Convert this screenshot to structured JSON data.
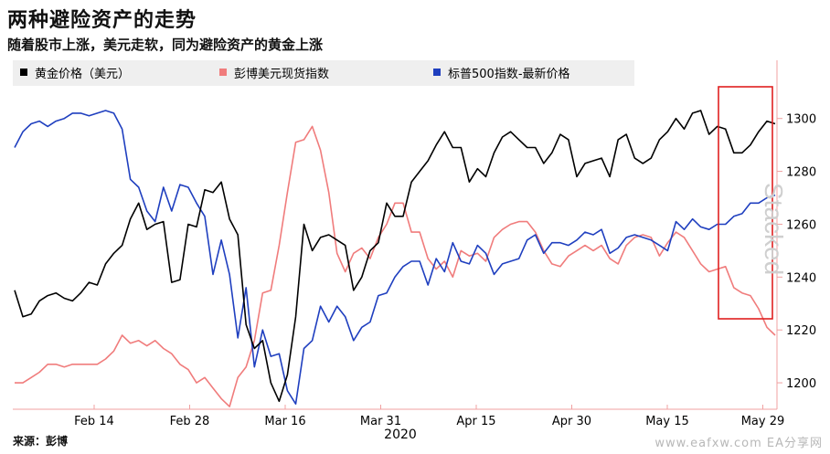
{
  "title": "两种避险资产的走势",
  "subtitle": "随着股市上涨，美元走软，同为避险资产的黄金上涨",
  "source": "来源：彭博",
  "watermark": "www.eafxw.com  EA分享网",
  "brand": "Stacked",
  "colors": {
    "gold": "#000000",
    "dollar": "#f07c7c",
    "sp500": "#1f3fbf",
    "highlight": "#e02020",
    "legend_bg": "#efefef",
    "axis": "#f0a0a0"
  },
  "chart_data": {
    "type": "line",
    "title": "两种避险资产的走势",
    "x_tick_labels": [
      "Feb 14",
      "Feb 28",
      "Mar 16",
      "Mar 31",
      "Apr 15",
      "Apr 30",
      "May 15",
      "May 29"
    ],
    "x_year_label": "2020",
    "y_ticks": [
      1200,
      1220,
      1240,
      1260,
      1280,
      1300
    ],
    "ylim": [
      1190,
      1312
    ],
    "legend_position": "top",
    "grid": false,
    "series": [
      {
        "name": "黄金价格（美元）",
        "key": "gold",
        "values": [
          1235,
          1225,
          1226,
          1231,
          1233,
          1234,
          1232,
          1231,
          1234,
          1238,
          1237,
          1245,
          1249,
          1252,
          1262,
          1268,
          1258,
          1260,
          1261,
          1238,
          1239,
          1260,
          1259,
          1273,
          1272,
          1276,
          1262,
          1256,
          1222,
          1213,
          1216,
          1200,
          1193,
          1203,
          1225,
          1260,
          1250,
          1255,
          1256,
          1254,
          1252,
          1235,
          1240,
          1250,
          1253,
          1268,
          1263,
          1263,
          1276,
          1280,
          1284,
          1290,
          1295,
          1289,
          1289,
          1276,
          1281,
          1278,
          1287,
          1293,
          1295,
          1292,
          1289,
          1289,
          1283,
          1287,
          1294,
          1292,
          1278,
          1283,
          1284,
          1285,
          1278,
          1292,
          1294,
          1285,
          1283,
          1285,
          1292,
          1295,
          1300,
          1296,
          1302,
          1303,
          1294,
          1297,
          1296,
          1287,
          1287,
          1290,
          1295,
          1299,
          1298
        ]
      },
      {
        "name": "彭博美元现货指数",
        "key": "dollar",
        "values": [
          1200,
          1200,
          1202,
          1204,
          1207,
          1207,
          1206,
          1207,
          1207,
          1207,
          1207,
          1209,
          1212,
          1218,
          1215,
          1216,
          1214,
          1216,
          1213,
          1211,
          1207,
          1205,
          1200,
          1202,
          1198,
          1194,
          1191,
          1202,
          1206,
          1216,
          1234,
          1235,
          1252,
          1272,
          1291,
          1292,
          1297,
          1288,
          1272,
          1249,
          1242,
          1249,
          1251,
          1247,
          1255,
          1260,
          1268,
          1268,
          1257,
          1257,
          1247,
          1243,
          1246,
          1240,
          1250,
          1248,
          1249,
          1246,
          1255,
          1258,
          1260,
          1261,
          1261,
          1257,
          1250,
          1245,
          1244,
          1248,
          1250,
          1252,
          1250,
          1252,
          1247,
          1245,
          1252,
          1255,
          1256,
          1255,
          1248,
          1253,
          1257,
          1255,
          1250,
          1245,
          1242,
          1243,
          1244,
          1236,
          1234,
          1233,
          1228,
          1221,
          1218
        ]
      },
      {
        "name": "标普500指数-最新价格",
        "key": "sp500",
        "values": [
          1289,
          1295,
          1298,
          1299,
          1297,
          1299,
          1300,
          1302,
          1302,
          1301,
          1302,
          1303,
          1302,
          1296,
          1277,
          1274,
          1265,
          1261,
          1274,
          1265,
          1275,
          1274,
          1268,
          1263,
          1241,
          1254,
          1241,
          1217,
          1236,
          1206,
          1220,
          1210,
          1211,
          1197,
          1192,
          1213,
          1216,
          1229,
          1223,
          1229,
          1225,
          1216,
          1221,
          1223,
          1233,
          1234,
          1240,
          1244,
          1246,
          1246,
          1237,
          1247,
          1242,
          1253,
          1246,
          1245,
          1252,
          1249,
          1241,
          1245,
          1246,
          1247,
          1254,
          1256,
          1249,
          1253,
          1253,
          1252,
          1254,
          1257,
          1256,
          1258,
          1249,
          1251,
          1255,
          1256,
          1255,
          1254,
          1252,
          1250,
          1261,
          1258,
          1262,
          1259,
          1258,
          1260,
          1260,
          1263,
          1264,
          1268,
          1268,
          1270,
          1271
        ]
      }
    ]
  }
}
